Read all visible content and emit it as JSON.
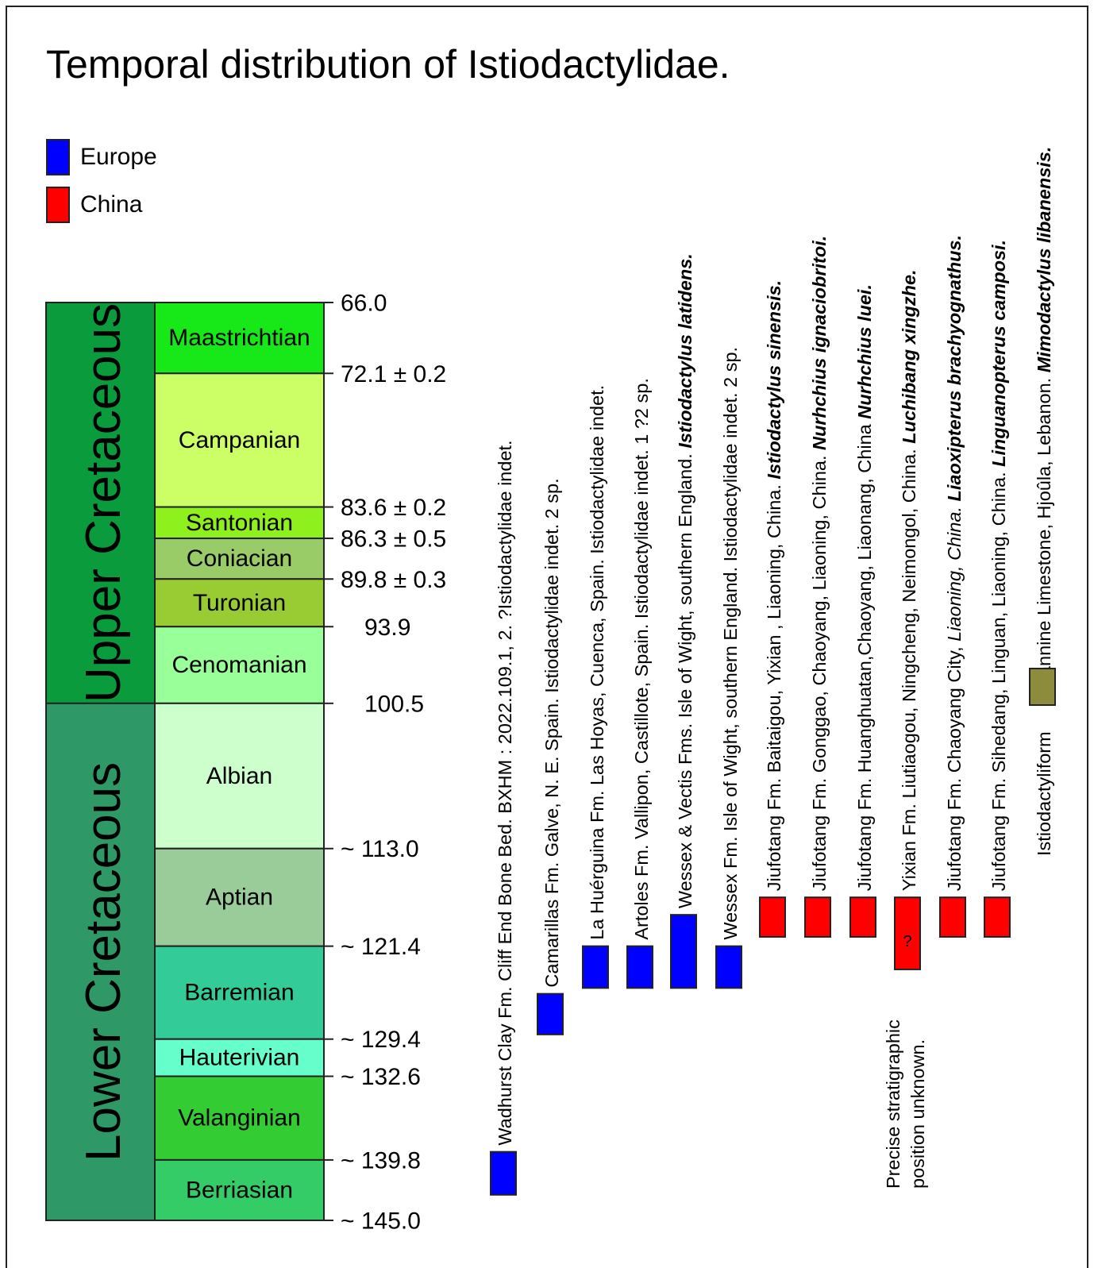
{
  "title": "Temporal distribution of Istiodactylidae.",
  "colors": {
    "europe": "#0000ff",
    "china": "#ff0000",
    "lebanon": "#8c8c3c",
    "upper_cretaceous": "#0a9b3c",
    "lower_cretaceous": "#2e9966"
  },
  "legend": [
    {
      "label": "Europe",
      "color": "#0000ff"
    },
    {
      "label": "China",
      "color": "#ff0000"
    }
  ],
  "epochs": [
    {
      "name": "Upper Cretaceous",
      "from": 66.0,
      "to": 100.5,
      "color": "#0a9b3c"
    },
    {
      "name": "Lower Cretaceous",
      "from": 100.5,
      "to": 145.0,
      "color": "#2e9966"
    }
  ],
  "stages": [
    {
      "name": "Maastrichtian",
      "from": 66.0,
      "to": 72.1,
      "color": "#17e817"
    },
    {
      "name": "Campanian",
      "from": 72.1,
      "to": 83.6,
      "color": "#ccff66"
    },
    {
      "name": "Santonian",
      "from": 83.6,
      "to": 86.3,
      "color": "#8ef01c"
    },
    {
      "name": "Coniacian",
      "from": 86.3,
      "to": 89.8,
      "color": "#99cc66"
    },
    {
      "name": "Turonian",
      "from": 89.8,
      "to": 93.9,
      "color": "#99cc33"
    },
    {
      "name": "Cenomanian",
      "from": 93.9,
      "to": 100.5,
      "color": "#99ff99"
    },
    {
      "name": "Albian",
      "from": 100.5,
      "to": 113.0,
      "color": "#ccffcc"
    },
    {
      "name": "Aptian",
      "from": 113.0,
      "to": 121.4,
      "color": "#99cc99"
    },
    {
      "name": "Barremian",
      "from": 121.4,
      "to": 129.4,
      "color": "#33cc99"
    },
    {
      "name": "Hauterivian",
      "from": 129.4,
      "to": 132.6,
      "color": "#66ffcc"
    },
    {
      "name": "Valanginian",
      "from": 132.6,
      "to": 139.8,
      "color": "#33cc33"
    },
    {
      "name": "Berriasian",
      "from": 139.8,
      "to": 145.0,
      "color": "#33cc66"
    }
  ],
  "boundaries": [
    {
      "age": 66.0,
      "label": "66.0"
    },
    {
      "age": 72.1,
      "label": "72.1 ± 0.2"
    },
    {
      "age": 83.6,
      "label": "83.6 ± 0.2"
    },
    {
      "age": 86.3,
      "label": "86.3 ± 0.5"
    },
    {
      "age": 89.8,
      "label": "89.8 ± 0.3"
    },
    {
      "age": 93.9,
      "label": "93.9"
    },
    {
      "age": 100.5,
      "label": "100.5"
    },
    {
      "age": 113.0,
      "label": "~ 113.0"
    },
    {
      "age": 121.4,
      "label": "~ 121.4"
    },
    {
      "age": 129.4,
      "label": "~ 129.4"
    },
    {
      "age": 132.6,
      "label": "~ 132.6"
    },
    {
      "age": 139.8,
      "label": "~ 139.8"
    },
    {
      "age": 145.0,
      "label": "~ 145.0"
    }
  ],
  "occurrences": [
    {
      "region": "europe",
      "from": 139.1,
      "to": 142.8,
      "mark": "",
      "segments": [
        {
          "text": "Wadhurst Clay Fm. Cliff End Bone Bed. BXHM : 2022.109.1, 2. ?Istiodactylidae indet.",
          "style": "normal"
        }
      ]
    },
    {
      "region": "europe",
      "from": 125.5,
      "to": 129.0,
      "mark": "",
      "segments": [
        {
          "text": "Camarillas Fm. Galve, N. E. Spain. Istiodactylidae indet. 2 sp.",
          "style": "normal"
        }
      ]
    },
    {
      "region": "europe",
      "from": 121.4,
      "to": 125.0,
      "mark": "",
      "segments": [
        {
          "text": "La Huérguina Fm. Las Hoyas, Cuenca, Spain. Istiodactylidae indet.",
          "style": "normal"
        }
      ]
    },
    {
      "region": "europe",
      "from": 121.4,
      "to": 125.0,
      "mark": "",
      "segments": [
        {
          "text": "Artoles Fm. Vallipon, Castillote, Spain. Istiodactylidae indet. 1 ?2 sp.",
          "style": "normal"
        }
      ]
    },
    {
      "region": "europe",
      "from": 118.7,
      "to": 125.0,
      "mark": "",
      "segments": [
        {
          "text": "Wessex & Vectis Fms. Isle of Wight, southern England. ",
          "style": "normal"
        },
        {
          "text": "Istiodactylus latidens.",
          "style": "bold-italic"
        }
      ]
    },
    {
      "region": "europe",
      "from": 121.4,
      "to": 125.0,
      "mark": "",
      "segments": [
        {
          "text": "Wessex Fm. Isle of Wight, southern England. Istiodactylidae indet. 2 sp.",
          "style": "normal"
        }
      ]
    },
    {
      "region": "china",
      "from": 117.2,
      "to": 120.6,
      "mark": "",
      "segments": [
        {
          "text": "Jiufotang Fm. Baitaigou, Yixian , Liaoning, China. ",
          "style": "normal"
        },
        {
          "text": "Istiodactylus sinensis.",
          "style": "bold-italic"
        }
      ]
    },
    {
      "region": "china",
      "from": 117.2,
      "to": 120.6,
      "mark": "",
      "segments": [
        {
          "text": "Jiufotang Fm. Gonggao, Chaoyang, Liaoning, China. ",
          "style": "normal"
        },
        {
          "text": "Nurhchius ignaciobritoi.",
          "style": "bold-italic"
        }
      ]
    },
    {
      "region": "china",
      "from": 117.2,
      "to": 120.6,
      "mark": "",
      "segments": [
        {
          "text": "Jiufotang Fm. Huanghuatan,Chaoyang, Liaonang, China ",
          "style": "normal"
        },
        {
          "text": "Nurhchius luei.",
          "style": "bold-italic"
        }
      ]
    },
    {
      "region": "china",
      "from": 117.2,
      "to": 123.4,
      "mark": "?",
      "segments": [
        {
          "text": "Yixian Fm. Liutiaogou, Ningcheng, Neimongol, China. ",
          "style": "normal"
        },
        {
          "text": "Luchibang xingzhe.",
          "style": "bold-italic"
        }
      ]
    },
    {
      "region": "china",
      "from": 117.2,
      "to": 120.6,
      "mark": "",
      "segments": [
        {
          "text": "Jiufotang Fm. Chaoyang City, ",
          "style": "normal"
        },
        {
          "text": "Liaoning, China. ",
          "style": "italic"
        },
        {
          "text": "Liaoxipterus brachyognathus.",
          "style": "bold-italic"
        }
      ]
    },
    {
      "region": "china",
      "from": 117.2,
      "to": 120.6,
      "mark": "",
      "segments": [
        {
          "text": "Jiufotang Fm. Sihedang, Linguan, Liaoning, China. ",
          "style": "normal"
        },
        {
          "text": "Linguanopterus camposi.",
          "style": "bold-italic"
        }
      ]
    },
    {
      "region": "lebanon",
      "from": 93.9,
      "to": 96.0,
      "mark": "",
      "segments": [
        {
          "text": "Istiodactyliform ",
          "style": "normal"
        },
        {
          "text": "__SWATCH__",
          "style": "swatch"
        },
        {
          "text": "Sannine Limestone, Hjoûla, Lebanon. ",
          "style": "normal"
        },
        {
          "text": "Mimodactylus libanensis.",
          "style": "bold-italic"
        }
      ]
    }
  ],
  "note": {
    "lines": [
      "Precise stratigraphic",
      "position unknown."
    ]
  }
}
